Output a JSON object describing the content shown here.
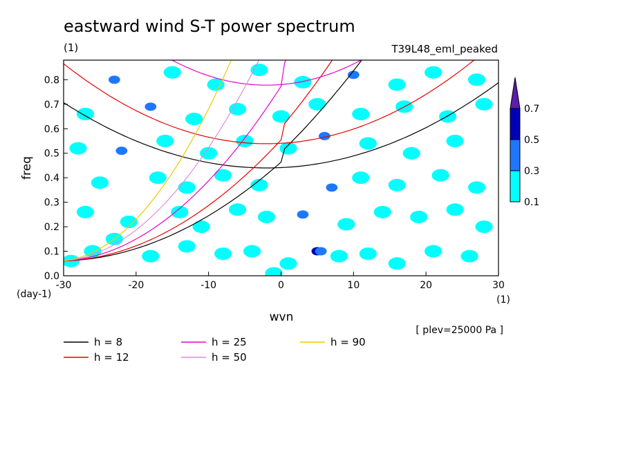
{
  "chart_data": {
    "type": "heatmap",
    "title": "eastward wind S-T power spectrum",
    "title_unit": "(1)",
    "run_label": "T39L48_eml_peaked",
    "xlabel": "wvn",
    "x_unit": "(1)",
    "ylabel": "freq",
    "y_unit": "(day-1)",
    "xlim": [
      -30,
      30
    ],
    "ylim": [
      0,
      0.88
    ],
    "xticks": [
      -30,
      -20,
      -10,
      0,
      10,
      20,
      30
    ],
    "xtick_labels": [
      "-30",
      "-20",
      "-10",
      "0",
      "10",
      "20",
      "30"
    ],
    "yticks": [
      0.0,
      0.1,
      0.2,
      0.3,
      0.4,
      0.5,
      0.6,
      0.7,
      0.8
    ],
    "ytick_labels": [
      "0.0",
      "0.1",
      "0.2",
      "0.3",
      "0.4",
      "0.5",
      "0.6",
      "0.7",
      "0.8"
    ],
    "plev_note": "[ plev=25000 Pa ]",
    "colorbar": {
      "levels": [
        "0.1",
        "0.3",
        "0.5",
        "0.7"
      ],
      "colors": [
        "#00ffff",
        "#1e78ff",
        "#0000b4",
        "#5a1eaa"
      ]
    },
    "dispersion_curves": [
      {
        "label": "h =  8",
        "color": "#000000",
        "h": 8
      },
      {
        "label": "h = 12",
        "color": "#e60000",
        "h": 12
      },
      {
        "label": "h = 25",
        "color": "#e600c8",
        "h": 25
      },
      {
        "label": "h = 50",
        "color": "#dc8cdc",
        "h": 50
      },
      {
        "label": "h = 90",
        "color": "#f0c800",
        "h": 90
      }
    ],
    "power_blobs": [
      {
        "k": -29,
        "f": 0.06,
        "level": 1
      },
      {
        "k": -26,
        "f": 0.1,
        "level": 1
      },
      {
        "k": -23,
        "f": 0.15,
        "level": 1
      },
      {
        "k": -18,
        "f": 0.08,
        "level": 1
      },
      {
        "k": -13,
        "f": 0.12,
        "level": 1
      },
      {
        "k": -8,
        "f": 0.09,
        "level": 1
      },
      {
        "k": -4,
        "f": 0.1,
        "level": 1
      },
      {
        "k": 1,
        "f": 0.05,
        "level": 1
      },
      {
        "k": 5,
        "f": 0.1,
        "level": 3
      },
      {
        "k": 5.5,
        "f": 0.1,
        "level": 2
      },
      {
        "k": 8,
        "f": 0.08,
        "level": 1
      },
      {
        "k": 12,
        "f": 0.09,
        "level": 1
      },
      {
        "k": 16,
        "f": 0.05,
        "level": 1
      },
      {
        "k": 21,
        "f": 0.1,
        "level": 1
      },
      {
        "k": 26,
        "f": 0.08,
        "level": 1
      },
      {
        "k": -1,
        "f": 0.01,
        "level": 1
      },
      {
        "k": -27,
        "f": 0.26,
        "level": 1
      },
      {
        "k": -21,
        "f": 0.22,
        "level": 1
      },
      {
        "k": -14,
        "f": 0.26,
        "level": 1
      },
      {
        "k": -11,
        "f": 0.2,
        "level": 1
      },
      {
        "k": -6,
        "f": 0.27,
        "level": 1
      },
      {
        "k": -2,
        "f": 0.24,
        "level": 1
      },
      {
        "k": 3,
        "f": 0.25,
        "level": 2
      },
      {
        "k": 9,
        "f": 0.21,
        "level": 1
      },
      {
        "k": 14,
        "f": 0.26,
        "level": 1
      },
      {
        "k": 19,
        "f": 0.24,
        "level": 1
      },
      {
        "k": 24,
        "f": 0.27,
        "level": 1
      },
      {
        "k": 28,
        "f": 0.2,
        "level": 1
      },
      {
        "k": -25,
        "f": 0.38,
        "level": 1
      },
      {
        "k": -17,
        "f": 0.4,
        "level": 1
      },
      {
        "k": -13,
        "f": 0.36,
        "level": 1
      },
      {
        "k": -8,
        "f": 0.41,
        "level": 1
      },
      {
        "k": -3,
        "f": 0.37,
        "level": 1
      },
      {
        "k": 7,
        "f": 0.36,
        "level": 2
      },
      {
        "k": 11,
        "f": 0.4,
        "level": 1
      },
      {
        "k": 16,
        "f": 0.37,
        "level": 1
      },
      {
        "k": 22,
        "f": 0.41,
        "level": 1
      },
      {
        "k": 27,
        "f": 0.36,
        "level": 1
      },
      {
        "k": -28,
        "f": 0.52,
        "level": 1
      },
      {
        "k": -22,
        "f": 0.51,
        "level": 2
      },
      {
        "k": -16,
        "f": 0.55,
        "level": 1
      },
      {
        "k": -10,
        "f": 0.5,
        "level": 1
      },
      {
        "k": -5,
        "f": 0.55,
        "level": 1
      },
      {
        "k": 1,
        "f": 0.52,
        "level": 1
      },
      {
        "k": 6,
        "f": 0.57,
        "level": 2
      },
      {
        "k": 12,
        "f": 0.54,
        "level": 1
      },
      {
        "k": 18,
        "f": 0.5,
        "level": 1
      },
      {
        "k": 24,
        "f": 0.55,
        "level": 1
      },
      {
        "k": -27,
        "f": 0.66,
        "level": 1
      },
      {
        "k": -18,
        "f": 0.69,
        "level": 2
      },
      {
        "k": -12,
        "f": 0.64,
        "level": 1
      },
      {
        "k": -6,
        "f": 0.68,
        "level": 1
      },
      {
        "k": 0,
        "f": 0.65,
        "level": 1
      },
      {
        "k": 5,
        "f": 0.7,
        "level": 1
      },
      {
        "k": 11,
        "f": 0.66,
        "level": 1
      },
      {
        "k": 17,
        "f": 0.69,
        "level": 1
      },
      {
        "k": 23,
        "f": 0.65,
        "level": 1
      },
      {
        "k": 28,
        "f": 0.7,
        "level": 1
      },
      {
        "k": -23,
        "f": 0.8,
        "level": 2
      },
      {
        "k": -15,
        "f": 0.83,
        "level": 1
      },
      {
        "k": -9,
        "f": 0.78,
        "level": 1
      },
      {
        "k": -3,
        "f": 0.84,
        "level": 1
      },
      {
        "k": 3,
        "f": 0.79,
        "level": 1
      },
      {
        "k": 10,
        "f": 0.82,
        "level": 2
      },
      {
        "k": 16,
        "f": 0.78,
        "level": 1
      },
      {
        "k": 21,
        "f": 0.83,
        "level": 1
      },
      {
        "k": 27,
        "f": 0.8,
        "level": 1
      }
    ]
  }
}
